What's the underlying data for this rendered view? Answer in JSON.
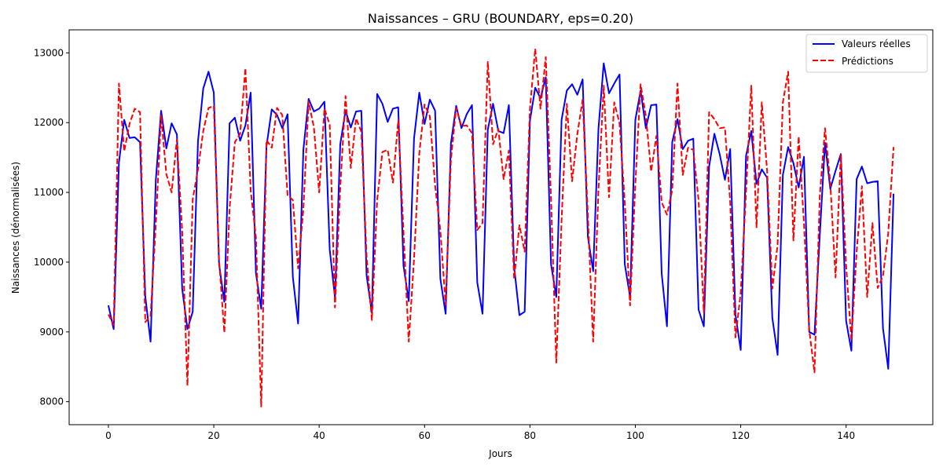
{
  "chart_data": {
    "type": "line",
    "title": "Naissances – GRU (BOUNDARY, eps=0.20)",
    "xlabel": "Jours",
    "ylabel": "Naissances (dénormalisées)",
    "xlim": [
      -7.45,
      156.45
    ],
    "ylim": [
      7670,
      13330
    ],
    "xticks": [
      0,
      20,
      40,
      60,
      80,
      100,
      120,
      140
    ],
    "yticks": [
      8000,
      9000,
      10000,
      11000,
      12000,
      13000
    ],
    "grid": false,
    "legend_position": "top-right",
    "series": [
      {
        "name": "Valeurs réelles",
        "color": "#0000ff",
        "style": "solid",
        "values": [
          9380,
          9040,
          11430,
          12040,
          11780,
          11790,
          11720,
          9510,
          8860,
          11180,
          12170,
          11630,
          11990,
          11830,
          9620,
          9040,
          9290,
          11730,
          12490,
          12730,
          12430,
          9970,
          9430,
          11990,
          12070,
          11740,
          11960,
          12430,
          9840,
          9330,
          11660,
          12190,
          12110,
          11920,
          12120,
          9790,
          9120,
          11610,
          12340,
          12160,
          12200,
          12300,
          10180,
          9490,
          11690,
          12170,
          11930,
          12160,
          12170,
          9810,
          9270,
          12410,
          12270,
          12010,
          12200,
          12220,
          9950,
          9440,
          11770,
          12430,
          11980,
          12330,
          12170,
          9760,
          9260,
          11700,
          12240,
          11920,
          12120,
          12250,
          9710,
          9260,
          11900,
          12270,
          11880,
          11850,
          12250,
          9930,
          9240,
          9290,
          12030,
          12500,
          12350,
          12650,
          9970,
          9500,
          12040,
          12460,
          12550,
          12400,
          12620,
          10360,
          9870,
          11910,
          12850,
          12420,
          12560,
          12690,
          9970,
          9500,
          12040,
          12460,
          11920,
          12250,
          12260,
          9840,
          9080,
          11720,
          12050,
          11620,
          11740,
          11770,
          9320,
          9080,
          11370,
          11840,
          11550,
          11180,
          11620,
          9250,
          8740,
          11520,
          11880,
          11120,
          11330,
          11210,
          9200,
          8670,
          11250,
          11650,
          11420,
          11070,
          11510,
          9000,
          8960,
          10380,
          11710,
          11050,
          11310,
          11550,
          9160,
          8730,
          11190,
          11370,
          11130,
          11150,
          11160,
          9050,
          8470,
          10980
        ]
      },
      {
        "name": "Prédictions",
        "color": "#ff0000",
        "style": "dashed",
        "values": [
          9250,
          9100,
          12560,
          11590,
          11980,
          12200,
          12150,
          9140,
          9230,
          10550,
          12100,
          11260,
          11000,
          11760,
          10440,
          8230,
          10900,
          11330,
          11880,
          12210,
          12240,
          10030,
          8990,
          10770,
          11720,
          11840,
          12780,
          11030,
          10360,
          7930,
          11750,
          11640,
          12210,
          12110,
          10960,
          10890,
          9910,
          10760,
          12300,
          11930,
          11000,
          12200,
          11970,
          9350,
          11070,
          12380,
          11350,
          12060,
          11870,
          10080,
          9170,
          10890,
          11580,
          11610,
          11140,
          12030,
          10440,
          8860,
          10040,
          11560,
          12260,
          12090,
          11100,
          10450,
          9390,
          11470,
          12210,
          11950,
          11960,
          11850,
          10460,
          10560,
          12870,
          11690,
          11910,
          11190,
          11600,
          9760,
          10530,
          10150,
          12200,
          13060,
          12200,
          12940,
          10910,
          8560,
          10600,
          12270,
          11160,
          11840,
          12330,
          10660,
          8860,
          11040,
          12530,
          10930,
          12290,
          11990,
          10850,
          9380,
          11120,
          12550,
          12090,
          11300,
          11810,
          10860,
          10680,
          11030,
          12560,
          11250,
          11640,
          11610,
          10890,
          9280,
          12150,
          12050,
          11920,
          11930,
          10860,
          8920,
          9560,
          10990,
          12530,
          10500,
          12290,
          11320,
          9620,
          10250,
          12290,
          12730,
          10310,
          11800,
          10560,
          9030,
          8420,
          10940,
          11920,
          11130,
          9780,
          11550,
          9950,
          8880,
          10150,
          11090,
          9500,
          10560,
          9630,
          9800,
          10420,
          11650
        ]
      }
    ]
  }
}
